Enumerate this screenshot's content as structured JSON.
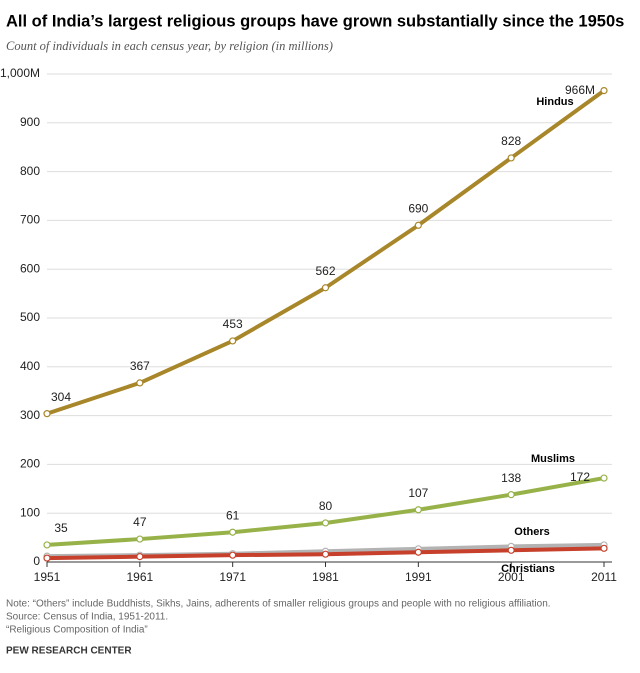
{
  "chart_data": {
    "type": "line",
    "title": "All of India’s largest religious groups have grown substantially since the 1950s",
    "subtitle": "Count of individuals in each census year, by religion (in millions)",
    "x": [
      1951,
      1961,
      1971,
      1981,
      1991,
      2001,
      2011
    ],
    "series": [
      {
        "name": "Hindus",
        "color": "#a8862a",
        "values": [
          304,
          367,
          453,
          562,
          690,
          828,
          966
        ],
        "value_labels": [
          "304",
          "367",
          "453",
          "562",
          "690",
          "828",
          "966M"
        ]
      },
      {
        "name": "Muslims",
        "color": "#98b24a",
        "values": [
          35,
          47,
          61,
          80,
          107,
          138,
          172
        ],
        "value_labels": [
          "35",
          "47",
          "61",
          "80",
          "107",
          "138",
          "172"
        ]
      },
      {
        "name": "Others",
        "color": "#b3b3b3",
        "values": [
          12,
          14,
          17,
          22,
          27,
          32,
          35
        ]
      },
      {
        "name": "Christians",
        "color": "#c6402b",
        "values": [
          8,
          11,
          14,
          16,
          20,
          24,
          28
        ]
      }
    ],
    "xlim": [
      1951,
      2011
    ],
    "xticks": [
      1951,
      1961,
      1971,
      1981,
      1991,
      2001,
      2011
    ],
    "ylim": [
      0,
      1000
    ],
    "yticks": [
      0,
      100,
      200,
      300,
      400,
      500,
      600,
      700,
      800,
      900,
      {
        "value": 1000,
        "label": "1,000M"
      }
    ],
    "grid": true,
    "notes": [
      "Note: “Others” include Buddhists, Sikhs, Jains, adherents of smaller religious groups and people with no religious affiliation.",
      "Source: Census of India, 1951-2011.",
      "“Religious Composition of India”"
    ],
    "credit": "PEW RESEARCH CENTER"
  }
}
